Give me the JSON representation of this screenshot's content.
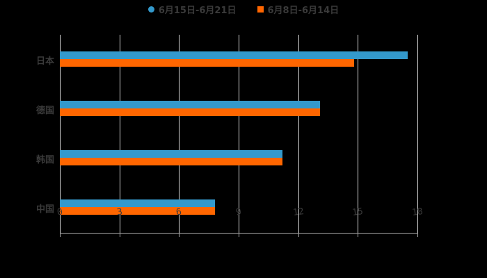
{
  "chart_data": {
    "type": "bar",
    "orientation": "horizontal",
    "categories": [
      "日本",
      "德国",
      "韩国",
      "中国"
    ],
    "series": [
      {
        "name": "6月15日-6月21日",
        "color": "#3399cc",
        "values": [
          17.5,
          13.1,
          11.2,
          7.8
        ]
      },
      {
        "name": "6月8日-6月14日",
        "color": "#ff6600",
        "values": [
          14.8,
          13.1,
          11.2,
          7.8
        ]
      }
    ],
    "xlim": [
      0,
      18
    ],
    "xticks": [
      "0",
      "3",
      "6",
      "9",
      "12",
      "15",
      "18"
    ],
    "grid": true,
    "legend_position": "top",
    "title": "",
    "xlabel": "",
    "ylabel": ""
  }
}
